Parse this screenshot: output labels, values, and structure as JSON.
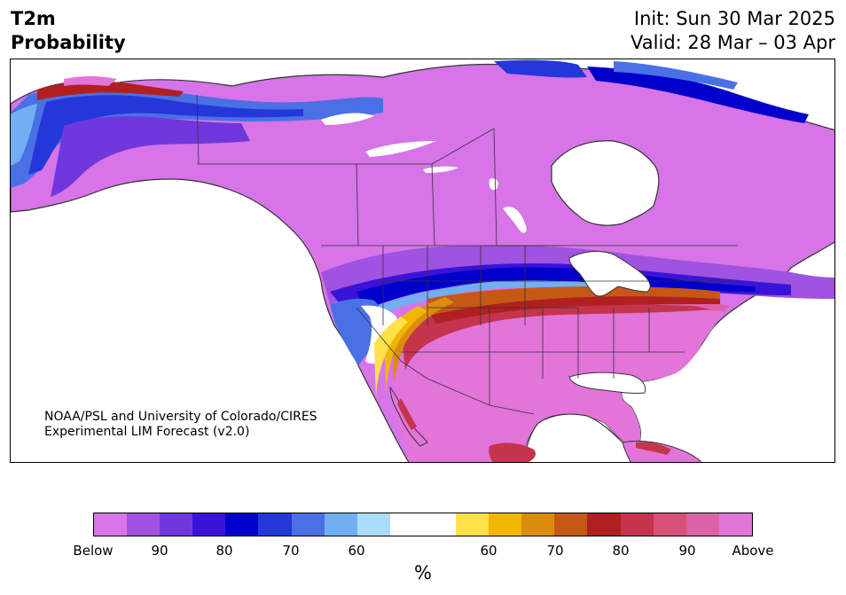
{
  "title": {
    "line1": "T2m",
    "line2": "Probability"
  },
  "init": {
    "line1": "Init: Sun 30 Mar 2025",
    "line2": "Valid: 28 Mar – 03 Apr"
  },
  "credit": {
    "line1": "NOAA/PSL and University of Colorado/CIRES",
    "line2": "Experimental LIM Forecast (v2.0)"
  },
  "colorbar": {
    "unit": "%",
    "colors": [
      "#d674e8",
      "#a052e0",
      "#7038dc",
      "#3a14d6",
      "#0000cd",
      "#2438da",
      "#4a70e6",
      "#72aef2",
      "#acdcfc",
      "#ffffff",
      "#ffe14a",
      "#f2b600",
      "#dc8c0c",
      "#c65816",
      "#b02020",
      "#c4344c",
      "#d65078",
      "#dc62a8",
      "#e274da"
    ],
    "tick_labels": [
      "Below",
      "90",
      "80",
      "70",
      "60",
      "60",
      "70",
      "80",
      "90",
      "Above"
    ]
  },
  "map": {
    "ocean_color": "#ffffff",
    "land_outline_color": "#333333",
    "regions": [
      "Alaska interior: below-normal probability (blue/purple)",
      "Canada and northern US: below-normal probability (purple)",
      "Central US and Mexico: above-normal probability (pink/red)"
    ]
  }
}
